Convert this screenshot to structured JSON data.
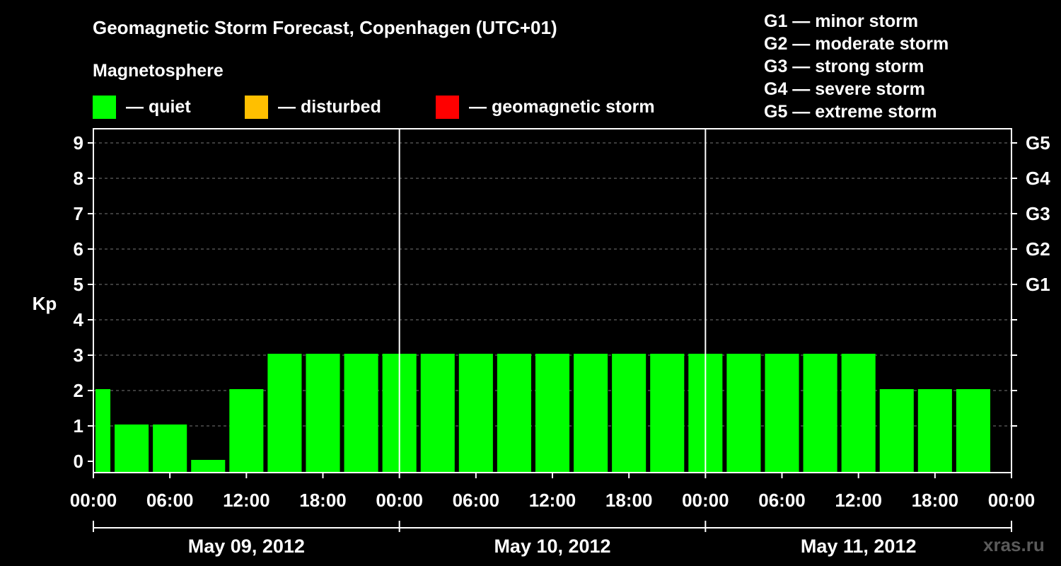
{
  "header": {
    "title": "Geomagnetic Storm Forecast, Copenhagen (UTC+01)",
    "subtitle": "Magnetosphere"
  },
  "legend": [
    {
      "label": "— quiet",
      "color": "#00ff00"
    },
    {
      "label": "— disturbed",
      "color": "#ffbf00"
    },
    {
      "label": "— geomagnetic storm",
      "color": "#ff0000"
    }
  ],
  "g_scale": [
    {
      "label": "G1 — minor storm"
    },
    {
      "label": "G2 — moderate storm"
    },
    {
      "label": "G3 — strong storm"
    },
    {
      "label": "G4 — severe storm"
    },
    {
      "label": "G5 — extreme storm"
    }
  ],
  "watermark": "xras.ru",
  "chart_data": {
    "type": "bar",
    "ylabel": "Kp",
    "ylim": [
      0,
      9
    ],
    "y_ticks": [
      "0",
      "1",
      "2",
      "3",
      "4",
      "5",
      "6",
      "7",
      "8",
      "9"
    ],
    "right_ticks": [
      "G1",
      "G2",
      "G3",
      "G4",
      "G5"
    ],
    "x_ticks": [
      "00:00",
      "06:00",
      "12:00",
      "18:00",
      "00:00",
      "06:00",
      "12:00",
      "18:00",
      "00:00",
      "06:00",
      "12:00",
      "18:00",
      "00:00"
    ],
    "days": [
      "May 09, 2012",
      "May 10, 2012",
      "May 11, 2012"
    ],
    "grid": true,
    "bar_color": "#00ff00",
    "series": [
      {
        "values": [
          2,
          1,
          1,
          0,
          2,
          3,
          3,
          3,
          3,
          3,
          3,
          3,
          3,
          3,
          3,
          3,
          3,
          3,
          3,
          3,
          3,
          2,
          2,
          2
        ]
      }
    ]
  }
}
